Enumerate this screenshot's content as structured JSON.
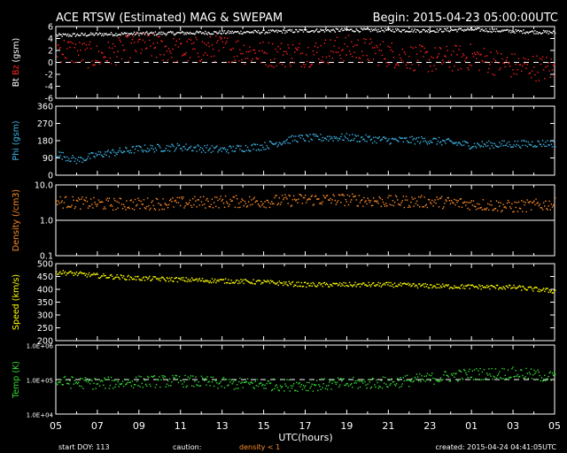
{
  "header": {
    "title": "ACE RTSW (Estimated) MAG & SWEPAM",
    "begin": "Begin: 2015-04-23 05:00:00UTC"
  },
  "footer": {
    "start_doy": "start DOY: 113",
    "caution": "caution:",
    "density_caution": "density < 1",
    "created": "created: 2015-04-24 04:41:05UTC"
  },
  "colors": {
    "bt": "#ffffff",
    "bz": "#ff2020",
    "phi": "#3cb4e6",
    "density": "#ff8c28",
    "speed": "#ffff00",
    "temp": "#32dc32",
    "caution": "#ff8c28"
  },
  "chart_data": [
    {
      "type": "scatter",
      "ylabel_parts": [
        "Bt",
        "Bz",
        "(gsm)"
      ],
      "ylim": [
        -6,
        6
      ],
      "yticks": [
        "6",
        "4",
        "2",
        "0",
        "-2",
        "-4",
        "-6"
      ],
      "dashed_zero": true,
      "series": [
        {
          "name": "Bt",
          "x": [
            5,
            7,
            9,
            11,
            13,
            15,
            17,
            19,
            21,
            23,
            25,
            27,
            29
          ],
          "values": [
            4.6,
            4.8,
            4.9,
            5.0,
            5.1,
            5.2,
            5.4,
            5.5,
            5.5,
            5.4,
            5.6,
            5.3,
            5.1
          ]
        },
        {
          "name": "Bz",
          "x": [
            5,
            7,
            9,
            11,
            13,
            15,
            17,
            19,
            21,
            23,
            25,
            27,
            29
          ],
          "values": [
            2.5,
            1.0,
            3.0,
            2.0,
            2.5,
            1.5,
            1.5,
            2.5,
            1.5,
            0.5,
            1.0,
            -0.5,
            -1.0
          ]
        }
      ]
    },
    {
      "type": "scatter",
      "ylabel_parts": [
        "Phi (gsm)"
      ],
      "ylim": [
        0,
        360
      ],
      "yticks": [
        "360",
        "270",
        "180",
        "90",
        "0"
      ],
      "series": [
        {
          "name": "Phi",
          "x": [
            5,
            6,
            7,
            9,
            11,
            13,
            15,
            16.5,
            19,
            21,
            23,
            25,
            27,
            29
          ],
          "values": [
            115,
            80,
            110,
            140,
            150,
            135,
            155,
            195,
            200,
            185,
            185,
            160,
            165,
            170
          ]
        }
      ]
    },
    {
      "type": "scatter",
      "ylabel_parts": [
        "Density (/cm3)"
      ],
      "ylim": [
        0.1,
        10
      ],
      "log": true,
      "yticks": [
        "10.0",
        "1.0",
        "0.1"
      ],
      "series": [
        {
          "name": "Density",
          "x": [
            5,
            7,
            9,
            11,
            13,
            15,
            17,
            19,
            21,
            23,
            25,
            27,
            29
          ],
          "values": [
            3.5,
            3.0,
            3.0,
            3.2,
            3.5,
            3.5,
            4.0,
            4.0,
            3.5,
            3.5,
            3.0,
            2.5,
            3.0
          ]
        }
      ]
    },
    {
      "type": "scatter",
      "ylabel_parts": [
        "Speed (km/s)"
      ],
      "ylim": [
        200,
        500
      ],
      "yticks": [
        "500",
        "450",
        "400",
        "350",
        "300",
        "250",
        "200"
      ],
      "series": [
        {
          "name": "Speed",
          "x": [
            5,
            7,
            9,
            11,
            13,
            15,
            17,
            19,
            21,
            23,
            25,
            27,
            29
          ],
          "values": [
            470,
            455,
            445,
            440,
            435,
            430,
            420,
            420,
            420,
            415,
            412,
            410,
            395
          ]
        }
      ]
    },
    {
      "type": "scatter",
      "ylabel_parts": [
        "Temp (K)"
      ],
      "ylim": [
        10000,
        1000000
      ],
      "log": true,
      "dashed_ref": 100000,
      "yticks": [
        "1.0E+06",
        "1.0E+05",
        "1.0E+04"
      ],
      "series": [
        {
          "name": "Temp",
          "x": [
            5,
            7,
            9,
            11,
            13,
            15,
            17,
            19,
            21,
            23,
            25,
            27,
            29
          ],
          "values": [
            90000,
            80000,
            90000,
            95000,
            80000,
            75000,
            70000,
            80000,
            85000,
            110000,
            150000,
            160000,
            120000
          ]
        }
      ]
    }
  ],
  "xaxis": {
    "xlim": [
      5,
      29
    ],
    "tick_labels": [
      "05",
      "07",
      "09",
      "11",
      "13",
      "15",
      "17",
      "19",
      "21",
      "23",
      "01",
      "03",
      "05"
    ],
    "xlabel": "UTC(hours)"
  }
}
